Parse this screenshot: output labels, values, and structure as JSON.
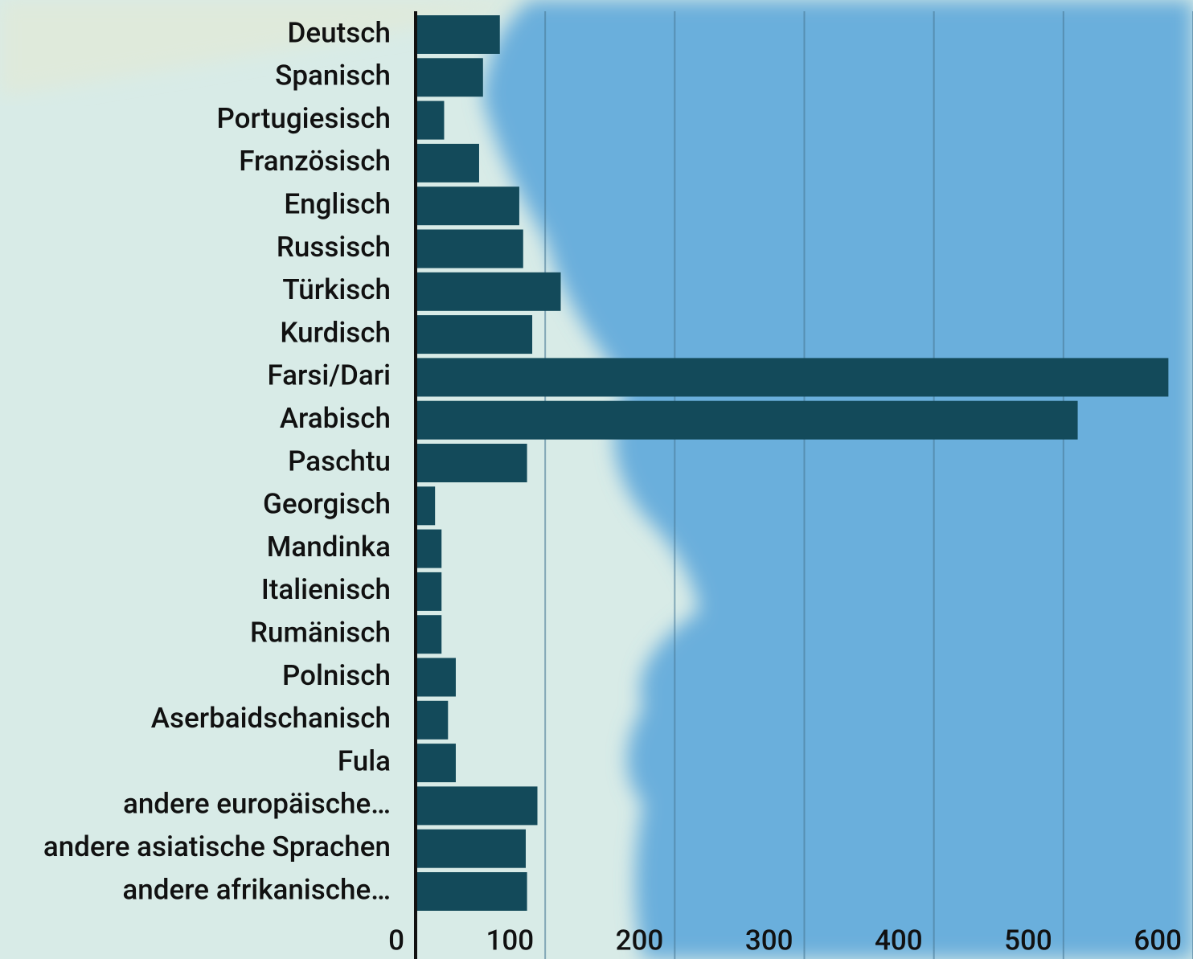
{
  "chart_data": {
    "type": "hbar",
    "categories": [
      "Deutsch",
      "Spanisch",
      "Portugiesisch",
      "Französisch",
      "Englisch",
      "Russisch",
      "Türkisch",
      "Kurdisch",
      "Farsi/Dari",
      "Arabisch",
      "Paschtu",
      "Georgisch",
      "Mandinka",
      "Italienisch",
      "Rumänisch",
      "Polnisch",
      "Aserbaidschanisch",
      "Fula",
      "andere europäische…",
      "andere asiatische Sprachen",
      "andere afrikanische…"
    ],
    "values": [
      65,
      52,
      22,
      49,
      80,
      83,
      112,
      90,
      581,
      511,
      86,
      15,
      20,
      20,
      20,
      31,
      25,
      31,
      94,
      85,
      86
    ],
    "color": "#134a5a",
    "xlim": [
      0,
      600
    ],
    "xticks": [
      0,
      100,
      200,
      300,
      400,
      500,
      600
    ],
    "grid": true
  }
}
